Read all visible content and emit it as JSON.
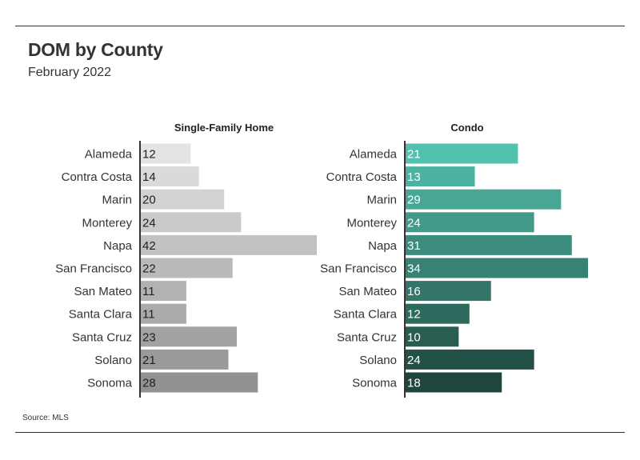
{
  "title": "DOM by County",
  "subtitle": "February 2022",
  "source": "Source: MLS",
  "chart_data": [
    {
      "type": "bar",
      "orientation": "horizontal",
      "title": "Single-Family Home",
      "categories": [
        "Alameda",
        "Contra Costa",
        "Marin",
        "Monterey",
        "Napa",
        "San Francisco",
        "San Mateo",
        "Santa Clara",
        "Santa Cruz",
        "Solano",
        "Sonoma"
      ],
      "values": [
        12,
        14,
        20,
        24,
        42,
        22,
        11,
        11,
        23,
        21,
        28
      ],
      "colors": [
        "#e3e3e3",
        "#dadada",
        "#d2d2d2",
        "#cacaca",
        "#c2c2c2",
        "#bababa",
        "#b2b2b2",
        "#aaaaaa",
        "#a2a2a2",
        "#9a9a9a",
        "#929292"
      ],
      "label_color": "#222222",
      "xlim": [
        0,
        42
      ],
      "grid": false,
      "legend": "none"
    },
    {
      "type": "bar",
      "orientation": "horizontal",
      "title": "Condo",
      "categories": [
        "Alameda",
        "Contra Costa",
        "Marin",
        "Monterey",
        "Napa",
        "San Francisco",
        "San Mateo",
        "Santa Clara",
        "Santa Cruz",
        "Solano",
        "Sonoma"
      ],
      "values": [
        21,
        13,
        29,
        24,
        31,
        34,
        16,
        12,
        10,
        24,
        18
      ],
      "colors": [
        "#51c0ac",
        "#4cb3a0",
        "#47a694",
        "#429a89",
        "#3d8d7e",
        "#388173",
        "#337568",
        "#2e695d",
        "#295d52",
        "#245147",
        "#1f463c"
      ],
      "label_color": "#ffffff",
      "xlim": [
        0,
        34
      ],
      "grid": false,
      "legend": "none"
    }
  ]
}
